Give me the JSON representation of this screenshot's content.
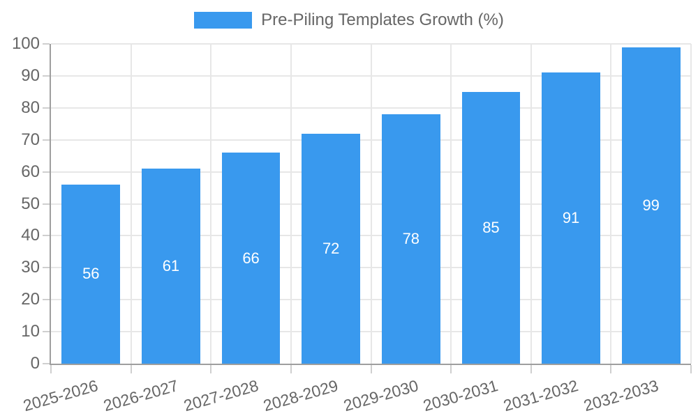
{
  "chart_data": {
    "type": "bar",
    "title": "Pre-Piling Templates Growth (%)",
    "series_name": "Pre-Piling Templates Growth (%)",
    "categories": [
      "2025-2026",
      "2026-2027",
      "2027-2028",
      "2028-2029",
      "2029-2030",
      "2030-2031",
      "2031-2032",
      "2032-2033"
    ],
    "values": [
      56,
      61,
      66,
      72,
      78,
      85,
      91,
      99
    ],
    "bar_value_labels": [
      "56",
      "61",
      "66",
      "72",
      "78",
      "85",
      "91",
      "99"
    ],
    "xlabel": "",
    "ylabel": "",
    "ylim": [
      0,
      100
    ],
    "ytick_step": 10,
    "ytick_labels": [
      "0",
      "10",
      "20",
      "30",
      "40",
      "50",
      "60",
      "70",
      "80",
      "90",
      "100"
    ],
    "grid": true,
    "legend_position": "top",
    "colors": {
      "bar": "#3999ee",
      "bar_label_text": "#ffffff",
      "axis_text": "#666666",
      "gridline": "#e7e7e7",
      "axis_line": "#9e9e9e",
      "background": "#ffffff"
    }
  }
}
